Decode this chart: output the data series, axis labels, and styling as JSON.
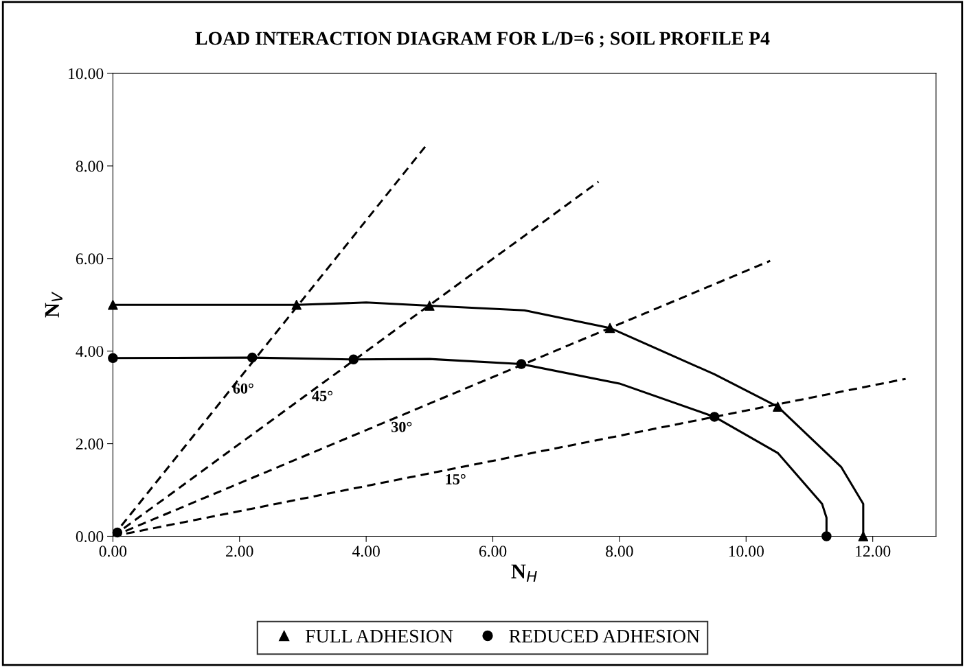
{
  "chart_data": {
    "type": "line",
    "title": "LOAD INTERACTION DIAGRAM FOR L/D=6 ; SOIL PROFILE P4",
    "xlabel": "N$_{H}$",
    "ylabel": "N$_{V}$",
    "xlim": [
      0,
      13
    ],
    "ylim": [
      0,
      10
    ],
    "xticks": [
      {
        "value": 0,
        "label": "0.00"
      },
      {
        "value": 2,
        "label": "2.00"
      },
      {
        "value": 4,
        "label": "4.00"
      },
      {
        "value": 6,
        "label": "6.00"
      },
      {
        "value": 8,
        "label": "8.00"
      },
      {
        "value": 10,
        "label": "10.00"
      },
      {
        "value": 12,
        "label": "12.00"
      }
    ],
    "yticks": [
      {
        "value": 0,
        "label": "0.00"
      },
      {
        "value": 2,
        "label": "2.00"
      },
      {
        "value": 4,
        "label": "4.00"
      },
      {
        "value": 6,
        "label": "6.00"
      },
      {
        "value": 8,
        "label": "8.00"
      },
      {
        "value": 10,
        "label": "10.00"
      }
    ],
    "grid": false,
    "legend": "bottom",
    "series": [
      {
        "color": "#000000",
        "line_style": "solid",
        "marker": "none",
        "x": [
          0,
          2.9,
          4.0,
          5.0,
          6.5,
          7.85,
          9.5,
          10.5,
          11.5,
          11.85,
          11.85
        ],
        "values": [
          5.0,
          5.0,
          5.05,
          4.98,
          4.88,
          4.5,
          3.5,
          2.8,
          1.5,
          0.7,
          0
        ]
      },
      {
        "color": "#000000",
        "line_style": "solid",
        "marker": "none",
        "x": [
          0,
          2.2,
          3.8,
          5.0,
          6.45,
          8.0,
          9.5,
          10.5,
          11.2,
          11.27,
          11.27
        ],
        "values": [
          3.85,
          3.86,
          3.82,
          3.83,
          3.72,
          3.3,
          2.58,
          1.8,
          0.7,
          0.4,
          0
        ]
      },
      {
        "color": "#000000",
        "line_style": "dashed",
        "marker": "none",
        "x": [
          0,
          4.94
        ],
        "values": [
          0,
          8.43
        ]
      },
      {
        "color": "#000000",
        "line_style": "dashed",
        "marker": "none",
        "x": [
          0,
          7.67
        ],
        "values": [
          0,
          7.66
        ]
      },
      {
        "color": "#000000",
        "line_style": "dashed",
        "marker": "none",
        "x": [
          0,
          10.38
        ],
        "values": [
          0,
          5.95
        ]
      },
      {
        "color": "#000000",
        "line_style": "dashed",
        "marker": "none",
        "x": [
          0,
          12.52
        ],
        "values": [
          0,
          3.4
        ]
      },
      {
        "type": "scatter",
        "name": "FULL ADHESION",
        "color": "#000000",
        "marker": "triangle",
        "x": [
          0,
          2.9,
          5.0,
          7.85,
          10.5,
          11.85
        ],
        "values": [
          5.0,
          5.0,
          4.98,
          4.5,
          2.8,
          0
        ]
      },
      {
        "type": "scatter",
        "name": "REDUCED ADHESION",
        "color": "#000000",
        "marker": "circle",
        "x": [
          0,
          2.2,
          3.8,
          6.45,
          9.5,
          11.27,
          0.07
        ],
        "values": [
          3.85,
          3.86,
          3.82,
          3.72,
          2.58,
          0,
          0.08
        ]
      }
    ],
    "annotations": [
      {
        "text": "60°",
        "x": 2.0,
        "y": 3.41
      },
      {
        "text": "45°",
        "x": 3.25,
        "y": 3.25
      },
      {
        "text": "30°",
        "x": 4.5,
        "y": 2.58
      },
      {
        "text": "15°",
        "x": 5.35,
        "y": 1.45
      }
    ]
  }
}
